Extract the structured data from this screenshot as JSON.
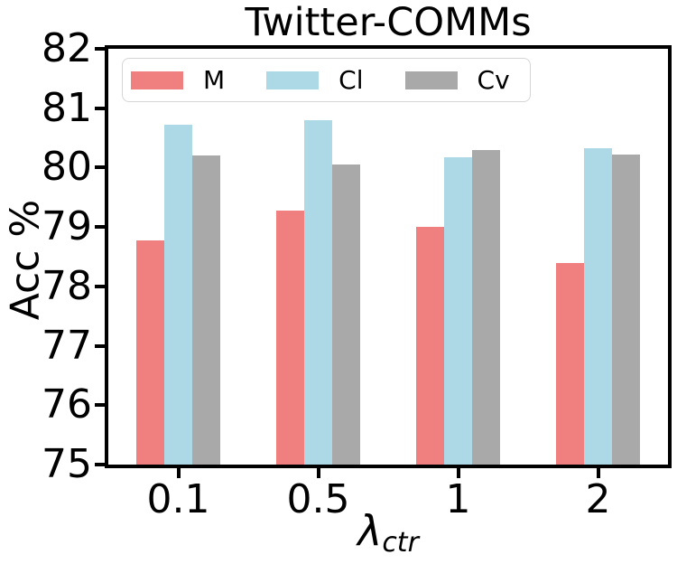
{
  "chart_data": {
    "type": "bar",
    "title": "Twitter-COMMs",
    "ylabel": "Acc %",
    "xlabel_main": "λ",
    "xlabel_sub": "ctr",
    "categories": [
      "0.1",
      "0.5",
      "1",
      "2"
    ],
    "series": [
      {
        "name": "M",
        "color": "#F08080",
        "values": [
          78.77,
          79.27,
          79.0,
          78.4
        ]
      },
      {
        "name": "Cl",
        "color": "#ADD8E6",
        "values": [
          80.72,
          80.8,
          80.18,
          80.33
        ]
      },
      {
        "name": "Cv",
        "color": "#A9A9A9",
        "values": [
          80.2,
          80.05,
          80.3,
          80.22
        ]
      }
    ],
    "ylim": [
      75,
      82
    ],
    "yticks": [
      75,
      76,
      77,
      78,
      79,
      80,
      81,
      82
    ],
    "legend_position": "upper-left-horizontal",
    "grid": false,
    "axis_color": "#000000",
    "background_color": "#ffffff"
  }
}
